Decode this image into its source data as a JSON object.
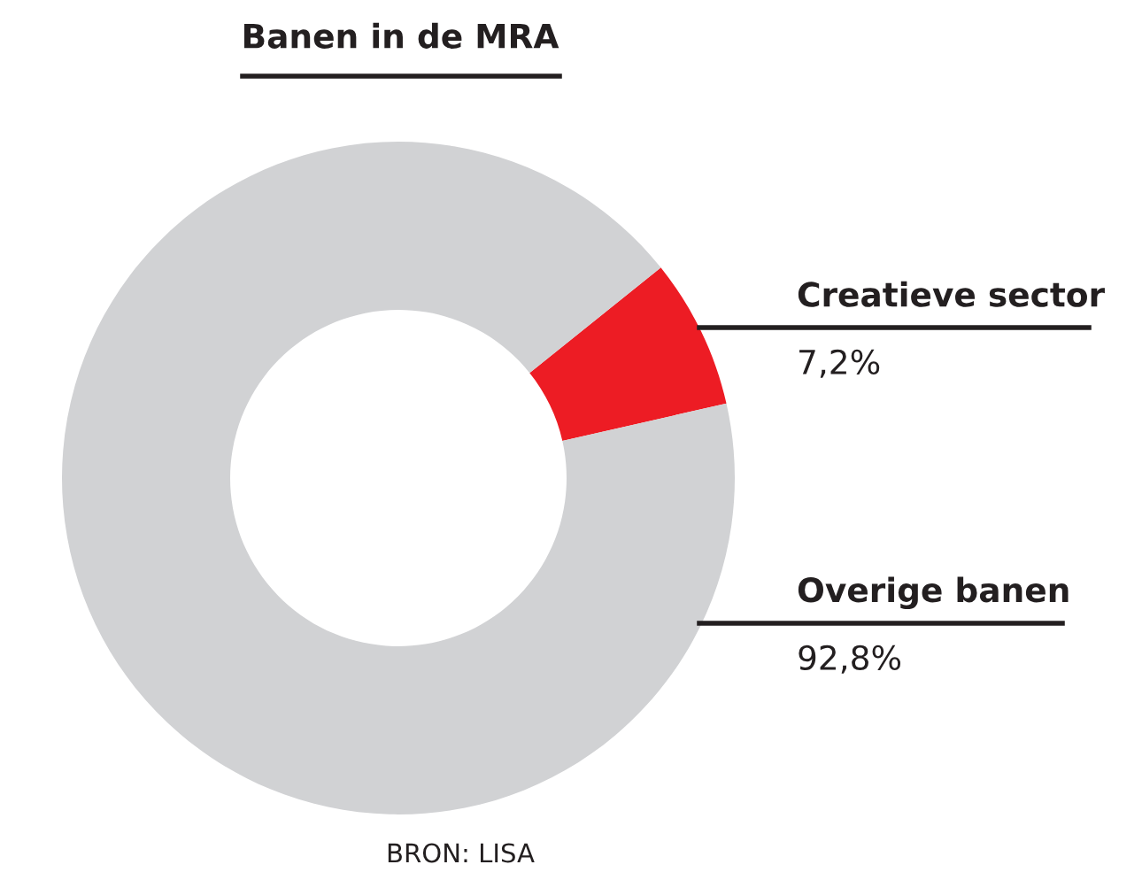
{
  "chart_data": {
    "type": "donut",
    "title": "Banen in de MRA",
    "categories": [
      "Creatieve sector",
      "Overige banen"
    ],
    "values": [
      7.2,
      92.8
    ],
    "value_labels": [
      "7,2%",
      "92,8%"
    ],
    "colors": [
      "#ed1c24",
      "#d1d2d4"
    ],
    "annotations": [
      "BRON: LISA"
    ]
  }
}
